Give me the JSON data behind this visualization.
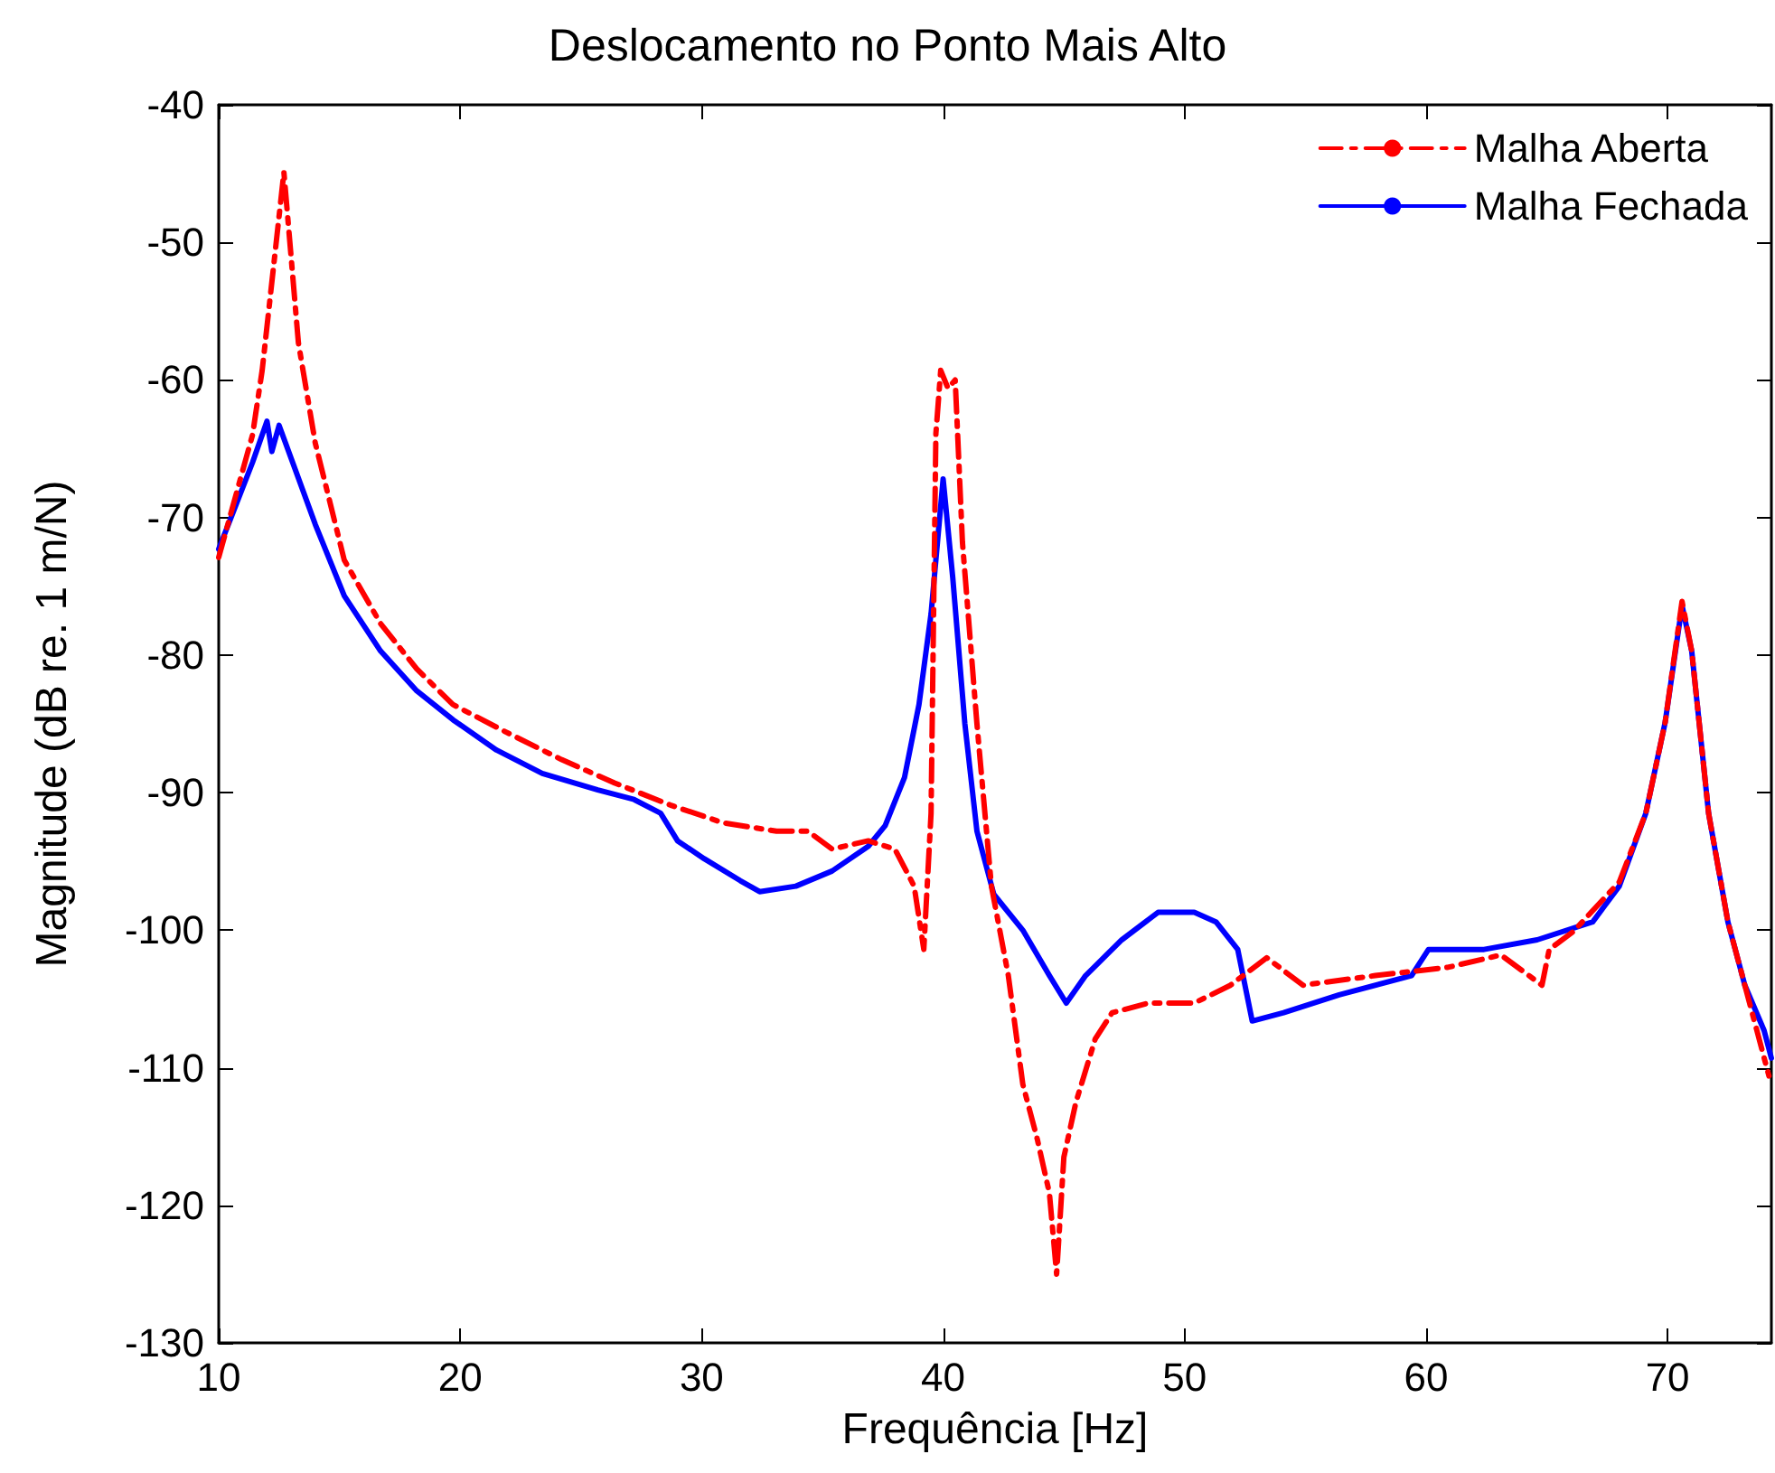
{
  "chart_data": {
    "type": "line",
    "title": "Deslocamento no Ponto Mais Alto",
    "xlabel": "Frequência [Hz]",
    "ylabel": "Magnitude (dB re. 1 m/N)",
    "xlim": [
      10,
      74.3
    ],
    "ylim": [
      -130,
      -40
    ],
    "xticks": [
      10,
      20,
      30,
      40,
      50,
      60,
      70
    ],
    "yticks": [
      -130,
      -120,
      -110,
      -100,
      -90,
      -80,
      -70,
      -60,
      -50,
      -40
    ],
    "grid": false,
    "legend": "top right",
    "marker": "none",
    "series": [
      {
        "name": "Malha Aberta",
        "color": "#ff0000",
        "line_style": "dashed",
        "x": [
          10,
          11.4,
          11.8,
          12.7,
          13.3,
          14.0,
          15.2,
          16.7,
          18.2,
          19.7,
          21.9,
          24.2,
          26.4,
          28.7,
          30.9,
          33.1,
          34.4,
          35.4,
          36.9,
          38.0,
          38.8,
          39.2,
          39.5,
          39.7,
          39.9,
          40.2,
          40.5,
          40.8,
          41.4,
          42.0,
          42.7,
          43.3,
          43.9,
          44.4,
          44.7,
          45.0,
          45.5,
          46.3,
          47.0,
          48.5,
          50.4,
          51.9,
          53.4,
          54.9,
          57.9,
          60.9,
          63.1,
          64.8,
          65.1,
          66.1,
          68.0,
          69.1,
          69.9,
          70.6,
          71.0,
          71.7,
          72.5,
          73.2,
          74.2
        ],
        "values": [
          -72.9,
          -64,
          -59.3,
          -44.9,
          -57.3,
          -64.6,
          -73.1,
          -77.7,
          -81,
          -83.6,
          -85.6,
          -87.6,
          -89.3,
          -90.9,
          -92.2,
          -92.8,
          -92.8,
          -94.1,
          -93.5,
          -94.1,
          -96.8,
          -101.4,
          -91.5,
          -63.9,
          -59.3,
          -60.6,
          -60,
          -71.8,
          -85,
          -96.8,
          -103.3,
          -111.2,
          -115.2,
          -119.1,
          -125,
          -116.5,
          -112.5,
          -107.9,
          -106,
          -105.3,
          -105.3,
          -104,
          -102,
          -104,
          -103.3,
          -102.7,
          -101.8,
          -104,
          -101.4,
          -100.1,
          -96.5,
          -91.5,
          -84.9,
          -76.1,
          -79.7,
          -91.5,
          -99.4,
          -104,
          -110.6
        ]
      },
      {
        "name": "Malha Fechada",
        "color": "#0000ff",
        "line_style": "solid",
        "x": [
          10,
          11.4,
          12.0,
          12.2,
          12.5,
          14.0,
          15.2,
          16.7,
          18.2,
          19.7,
          21.5,
          23.4,
          25.7,
          27.2,
          28.3,
          29.0,
          30.1,
          31.6,
          32.4,
          33.9,
          35.4,
          36.9,
          37.6,
          38.4,
          39.0,
          39.5,
          40.0,
          40.4,
          40.9,
          41.4,
          42.1,
          43.3,
          44.4,
          45.1,
          45.9,
          47.4,
          48.9,
          50.4,
          51.3,
          52.2,
          52.8,
          54.1,
          56.4,
          59.4,
          60.1,
          62.4,
          64.6,
          66.9,
          68.0,
          69.1,
          69.9,
          70.6,
          71.0,
          71.7,
          72.5,
          73.2,
          74.0,
          74.3
        ],
        "values": [
          -72.3,
          -66,
          -63,
          -65.2,
          -63.3,
          -70.5,
          -75.7,
          -79.7,
          -82.6,
          -84.7,
          -86.9,
          -88.6,
          -89.8,
          -90.5,
          -91.5,
          -93.5,
          -94.8,
          -96.4,
          -97.2,
          -96.8,
          -95.7,
          -93.9,
          -92.4,
          -88.9,
          -83.6,
          -77,
          -67.2,
          -74.4,
          -85,
          -92.8,
          -97.4,
          -100,
          -103.3,
          -105.3,
          -103.3,
          -100.7,
          -98.7,
          -98.7,
          -99.4,
          -101.4,
          -106.6,
          -106,
          -104.7,
          -103.3,
          -101.4,
          -101.4,
          -100.7,
          -99.4,
          -96.8,
          -91.5,
          -84.9,
          -76.4,
          -79.7,
          -91.5,
          -99.4,
          -104,
          -107.3,
          -109.3
        ]
      }
    ]
  }
}
